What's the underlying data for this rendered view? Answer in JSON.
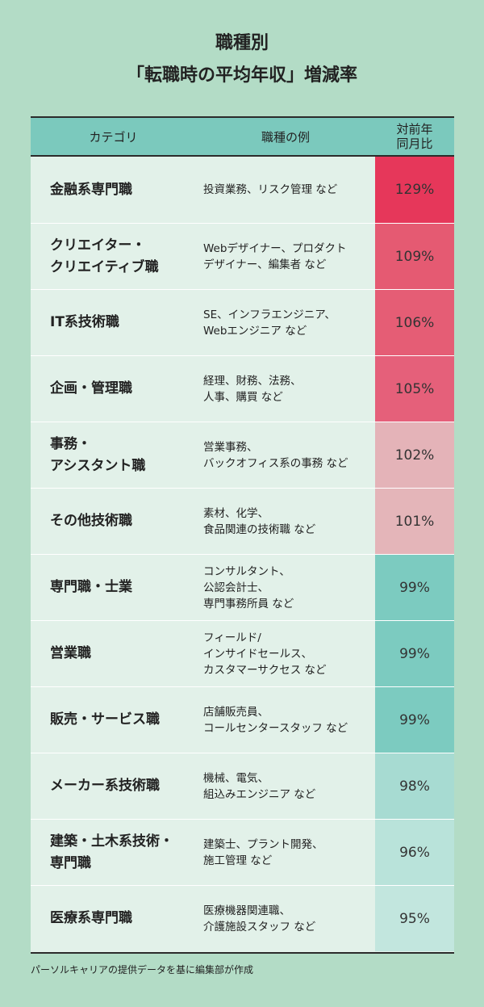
{
  "title": {
    "line1": "職種別",
    "line2": "「転職時の平均年収」増減率"
  },
  "chart_data": {
    "type": "table",
    "columns": [
      "カテゴリ",
      "職種の例",
      "対前年同月比"
    ],
    "header_yoy_lines": [
      "対前年",
      "同月比"
    ],
    "rows": [
      {
        "category": [
          "金融系専門職"
        ],
        "examples": [
          "投資業務、リスク管理 など"
        ],
        "value": 129,
        "label": "129%",
        "color": "#e6375a"
      },
      {
        "category": [
          "クリエイター・",
          "クリエイティブ職"
        ],
        "examples": [
          "Webデザイナー、プロダクト",
          "デザイナー、編集者 など"
        ],
        "value": 109,
        "label": "109%",
        "color": "#e55a72"
      },
      {
        "category": [
          "IT系技術職"
        ],
        "examples": [
          "SE、インフラエンジニア、",
          "Webエンジニア など"
        ],
        "value": 106,
        "label": "106%",
        "color": "#e55d75"
      },
      {
        "category": [
          "企画・管理職"
        ],
        "examples": [
          "経理、財務、法務、",
          "人事、購買 など"
        ],
        "value": 105,
        "label": "105%",
        "color": "#e5607a"
      },
      {
        "category": [
          "事務・",
          "アシスタント職"
        ],
        "examples": [
          "営業事務、",
          "バックオフィス系の事務 など"
        ],
        "value": 102,
        "label": "102%",
        "color": "#e4b3b8"
      },
      {
        "category": [
          "その他技術職"
        ],
        "examples": [
          "素材、化学、",
          "食品関連の技術職 など"
        ],
        "value": 101,
        "label": "101%",
        "color": "#e4b5b9"
      },
      {
        "category": [
          "専門職・士業"
        ],
        "examples": [
          "コンサルタント、",
          "公認会計士、",
          "専門事務所員 など"
        ],
        "value": 99,
        "label": "99%",
        "color": "#7ccbc0"
      },
      {
        "category": [
          "営業職"
        ],
        "examples": [
          "フィールド/",
          "インサイドセールス、",
          "カスタマーサクセス など"
        ],
        "value": 99,
        "label": "99%",
        "color": "#7ccbc0"
      },
      {
        "category": [
          "販売・サービス職"
        ],
        "examples": [
          "店舗販売員、",
          "コールセンタースタッフ など"
        ],
        "value": 99,
        "label": "99%",
        "color": "#7ccbc0"
      },
      {
        "category": [
          "メーカー系技術職"
        ],
        "examples": [
          "機械、電気、",
          "組込みエンジニア など"
        ],
        "value": 98,
        "label": "98%",
        "color": "#a7dbd2"
      },
      {
        "category": [
          "建築・土木系技術・",
          "専門職"
        ],
        "examples": [
          "建築士、プラント開発、",
          "施工管理 など"
        ],
        "value": 96,
        "label": "96%",
        "color": "#b9e3da"
      },
      {
        "category": [
          "医療系専門職"
        ],
        "examples": [
          "医療機器関連職、",
          "介護施設スタッフ など"
        ],
        "value": 95,
        "label": "95%",
        "color": "#c2e6de"
      }
    ]
  },
  "source": "パーソルキャリアの提供データを基に編集部が作成",
  "colors": {
    "background": "#b3dcc6",
    "table_body": "#e2f1e9",
    "header": "#7bc9bd"
  }
}
